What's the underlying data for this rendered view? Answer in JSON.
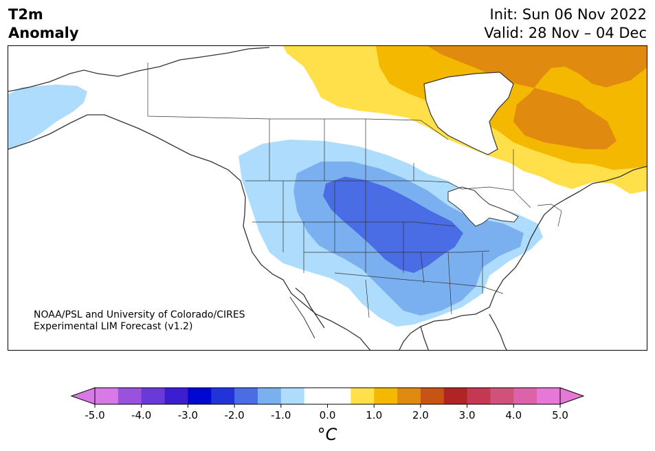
{
  "header": {
    "title_line1": "T2m",
    "title_line2": "Anomaly",
    "init": "Init: Sun 06 Nov 2022",
    "valid": "Valid: 28 Nov – 04 Dec"
  },
  "credit": {
    "line1": "NOAA/PSL and University of Colorado/CIRES",
    "line2": "Experimental LIM Forecast (v1.2)"
  },
  "colorbar": {
    "unit": "°C",
    "ticks": [
      "-5.0",
      "-4.0",
      "-3.0",
      "-2.0",
      "-1.0",
      "0.0",
      "1.0",
      "2.0",
      "3.0",
      "4.0",
      "5.0"
    ],
    "colors": [
      "#d87ae6",
      "#9a52de",
      "#6a3ad8",
      "#3c1ed0",
      "#0008d0",
      "#2234d8",
      "#4a6ce4",
      "#7ab0f0",
      "#aedcfc",
      "#ffffff",
      "#ffffff",
      "#ffe04a",
      "#f4b800",
      "#e08a10",
      "#c85414",
      "#b02424",
      "#c43852",
      "#d0527a",
      "#dc62aa",
      "#e878d8"
    ],
    "under_color": "#d87ae6",
    "over_color": "#e878d8"
  },
  "map": {
    "colors": {
      "cool_1": "#aedcfc",
      "cool_2": "#7ab0f0",
      "cool_3": "#4a6ce4",
      "warm_1": "#ffe04a",
      "warm_2": "#f4b800",
      "warm_3": "#e08a10",
      "coast": "#333333"
    }
  }
}
